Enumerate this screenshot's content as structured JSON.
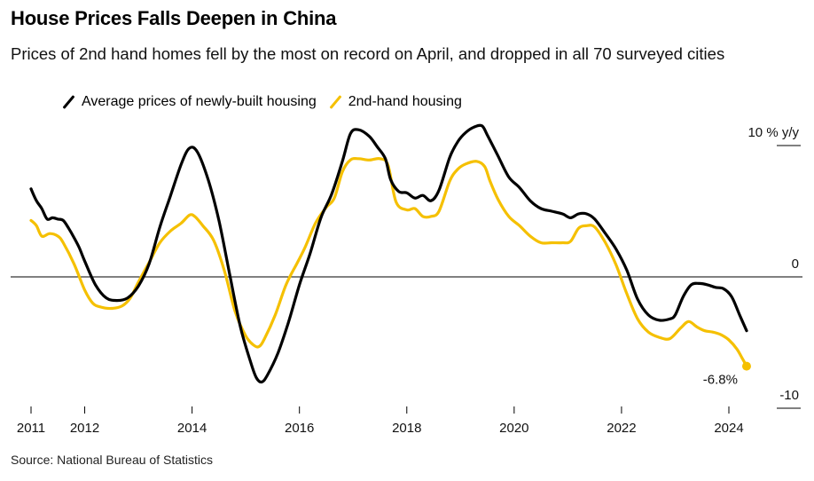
{
  "title": "House Prices Falls Deepen in China",
  "subtitle": "Prices of 2nd hand homes fell by the most on record on April, and dropped in all 70 surveyed cities",
  "source": "Source: National Bureau of Statistics",
  "colors": {
    "new": "#000000",
    "second": "#f5c000",
    "zero_line": "#000000"
  },
  "chart_data": {
    "type": "line",
    "title": "House Prices Falls Deepen in China",
    "xlabel": "",
    "ylabel": "% y/y",
    "xlim": [
      2010.9,
      2024.7
    ],
    "ylim": [
      -10,
      10
    ],
    "x_ticks": [
      "2011",
      "2012",
      "2014",
      "2016",
      "2018",
      "2020",
      "2022",
      "2024"
    ],
    "y_ticks": [
      {
        "value": 10,
        "label": "10 % y/y"
      },
      {
        "value": 0,
        "label": "0"
      },
      {
        "value": -10,
        "label": "-10"
      }
    ],
    "annotation": {
      "label": "-6.8%",
      "x": 2024.33,
      "y": -6.8
    },
    "legend_position": "top-left",
    "series": [
      {
        "name": "Average prices of newly-built housing",
        "color": "#000000",
        "points": [
          [
            2011.0,
            6.7
          ],
          [
            2011.1,
            5.8
          ],
          [
            2011.2,
            5.2
          ],
          [
            2011.3,
            4.4
          ],
          [
            2011.4,
            4.5
          ],
          [
            2011.5,
            4.4
          ],
          [
            2011.6,
            4.3
          ],
          [
            2011.7,
            3.7
          ],
          [
            2011.8,
            3.0
          ],
          [
            2011.9,
            2.2
          ],
          [
            2012.0,
            1.2
          ],
          [
            2012.2,
            -0.6
          ],
          [
            2012.4,
            -1.6
          ],
          [
            2012.6,
            -1.8
          ],
          [
            2012.8,
            -1.6
          ],
          [
            2013.0,
            -0.7
          ],
          [
            2013.2,
            1.0
          ],
          [
            2013.4,
            3.8
          ],
          [
            2013.6,
            6.2
          ],
          [
            2013.8,
            8.6
          ],
          [
            2013.95,
            9.8
          ],
          [
            2014.1,
            9.5
          ],
          [
            2014.3,
            7.4
          ],
          [
            2014.5,
            4.3
          ],
          [
            2014.7,
            0.2
          ],
          [
            2014.9,
            -3.8
          ],
          [
            2015.1,
            -6.6
          ],
          [
            2015.2,
            -7.7
          ],
          [
            2015.3,
            -8.0
          ],
          [
            2015.4,
            -7.5
          ],
          [
            2015.6,
            -5.8
          ],
          [
            2015.8,
            -3.4
          ],
          [
            2016.0,
            -0.6
          ],
          [
            2016.2,
            1.8
          ],
          [
            2016.4,
            4.5
          ],
          [
            2016.6,
            6.3
          ],
          [
            2016.8,
            8.8
          ],
          [
            2016.95,
            10.9
          ],
          [
            2017.1,
            11.2
          ],
          [
            2017.3,
            10.7
          ],
          [
            2017.45,
            9.9
          ],
          [
            2017.6,
            9.0
          ],
          [
            2017.7,
            7.4
          ],
          [
            2017.85,
            6.5
          ],
          [
            2018.0,
            6.4
          ],
          [
            2018.15,
            6.0
          ],
          [
            2018.3,
            6.2
          ],
          [
            2018.45,
            5.8
          ],
          [
            2018.6,
            6.6
          ],
          [
            2018.8,
            9.1
          ],
          [
            2018.95,
            10.3
          ],
          [
            2019.1,
            11.0
          ],
          [
            2019.25,
            11.4
          ],
          [
            2019.4,
            11.5
          ],
          [
            2019.5,
            10.8
          ],
          [
            2019.7,
            9.2
          ],
          [
            2019.9,
            7.6
          ],
          [
            2020.1,
            6.8
          ],
          [
            2020.3,
            5.8
          ],
          [
            2020.5,
            5.2
          ],
          [
            2020.7,
            5.0
          ],
          [
            2020.9,
            4.8
          ],
          [
            2021.05,
            4.5
          ],
          [
            2021.2,
            4.8
          ],
          [
            2021.35,
            4.8
          ],
          [
            2021.5,
            4.4
          ],
          [
            2021.7,
            3.3
          ],
          [
            2021.9,
            2.1
          ],
          [
            2022.1,
            0.5
          ],
          [
            2022.3,
            -1.7
          ],
          [
            2022.5,
            -2.9
          ],
          [
            2022.7,
            -3.3
          ],
          [
            2022.9,
            -3.2
          ],
          [
            2023.0,
            -2.9
          ],
          [
            2023.15,
            -1.5
          ],
          [
            2023.3,
            -0.6
          ],
          [
            2023.45,
            -0.5
          ],
          [
            2023.6,
            -0.6
          ],
          [
            2023.75,
            -0.8
          ],
          [
            2023.9,
            -0.9
          ],
          [
            2024.05,
            -1.5
          ],
          [
            2024.2,
            -2.9
          ],
          [
            2024.33,
            -4.1
          ]
        ]
      },
      {
        "name": "2nd-hand housing",
        "color": "#f5c000",
        "points": [
          [
            2011.0,
            4.3
          ],
          [
            2011.1,
            3.9
          ],
          [
            2011.2,
            3.1
          ],
          [
            2011.35,
            3.3
          ],
          [
            2011.5,
            3.1
          ],
          [
            2011.6,
            2.6
          ],
          [
            2011.8,
            1.0
          ],
          [
            2012.0,
            -1.0
          ],
          [
            2012.15,
            -2.0
          ],
          [
            2012.3,
            -2.3
          ],
          [
            2012.5,
            -2.4
          ],
          [
            2012.7,
            -2.2
          ],
          [
            2012.85,
            -1.6
          ],
          [
            2013.0,
            -0.4
          ],
          [
            2013.2,
            1.1
          ],
          [
            2013.4,
            2.6
          ],
          [
            2013.6,
            3.5
          ],
          [
            2013.8,
            4.1
          ],
          [
            2013.95,
            4.7
          ],
          [
            2014.05,
            4.6
          ],
          [
            2014.2,
            3.9
          ],
          [
            2014.4,
            2.8
          ],
          [
            2014.6,
            0.5
          ],
          [
            2014.8,
            -2.6
          ],
          [
            2015.0,
            -4.5
          ],
          [
            2015.15,
            -5.2
          ],
          [
            2015.25,
            -5.3
          ],
          [
            2015.35,
            -4.7
          ],
          [
            2015.55,
            -2.9
          ],
          [
            2015.75,
            -0.6
          ],
          [
            2015.95,
            1.0
          ],
          [
            2016.1,
            2.2
          ],
          [
            2016.3,
            4.1
          ],
          [
            2016.5,
            5.3
          ],
          [
            2016.65,
            6.0
          ],
          [
            2016.8,
            8.0
          ],
          [
            2016.95,
            8.9
          ],
          [
            2017.1,
            9.0
          ],
          [
            2017.3,
            8.9
          ],
          [
            2017.5,
            9.0
          ],
          [
            2017.65,
            8.5
          ],
          [
            2017.8,
            5.7
          ],
          [
            2018.0,
            5.1
          ],
          [
            2018.15,
            5.2
          ],
          [
            2018.3,
            4.6
          ],
          [
            2018.45,
            4.6
          ],
          [
            2018.6,
            5.0
          ],
          [
            2018.8,
            7.3
          ],
          [
            2018.95,
            8.2
          ],
          [
            2019.1,
            8.6
          ],
          [
            2019.3,
            8.8
          ],
          [
            2019.45,
            8.4
          ],
          [
            2019.55,
            7.3
          ],
          [
            2019.7,
            5.9
          ],
          [
            2019.9,
            4.6
          ],
          [
            2020.1,
            3.9
          ],
          [
            2020.3,
            3.1
          ],
          [
            2020.5,
            2.6
          ],
          [
            2020.7,
            2.6
          ],
          [
            2020.9,
            2.6
          ],
          [
            2021.05,
            2.7
          ],
          [
            2021.2,
            3.7
          ],
          [
            2021.35,
            3.9
          ],
          [
            2021.5,
            3.8
          ],
          [
            2021.7,
            2.6
          ],
          [
            2021.9,
            0.9
          ],
          [
            2022.1,
            -1.3
          ],
          [
            2022.3,
            -3.2
          ],
          [
            2022.5,
            -4.2
          ],
          [
            2022.7,
            -4.6
          ],
          [
            2022.9,
            -4.7
          ],
          [
            2023.1,
            -3.9
          ],
          [
            2023.25,
            -3.4
          ],
          [
            2023.4,
            -3.8
          ],
          [
            2023.55,
            -4.1
          ],
          [
            2023.7,
            -4.2
          ],
          [
            2023.85,
            -4.4
          ],
          [
            2024.0,
            -4.8
          ],
          [
            2024.15,
            -5.5
          ],
          [
            2024.25,
            -6.2
          ],
          [
            2024.33,
            -6.8
          ]
        ]
      }
    ]
  }
}
